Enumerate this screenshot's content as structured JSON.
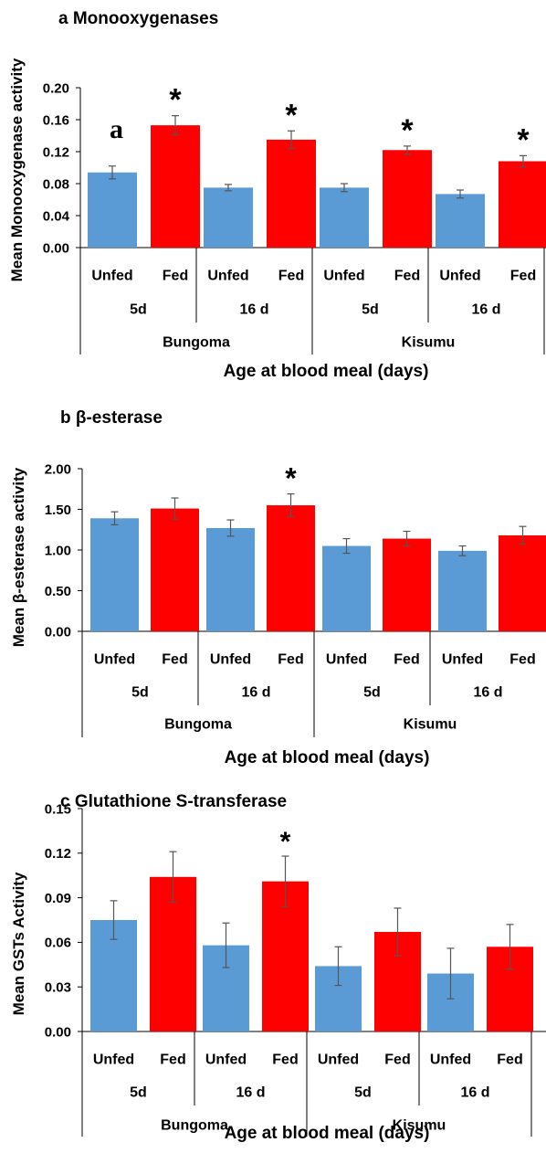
{
  "chart_data": [
    {
      "type": "bar",
      "title": "a Monooxygenases",
      "ylabel": "Mean Monooxygenase activity",
      "xlabel": "Age at blood meal (days)",
      "ylim": [
        0,
        0.2
      ],
      "yticks": [
        "0.00",
        "0.04",
        "0.08",
        "0.12",
        "0.16",
        "0.20"
      ],
      "categories": [
        "Unfed",
        "Fed",
        "Unfed",
        "Fed",
        "Unfed",
        "Fed",
        "Unfed",
        "Fed"
      ],
      "age_groups": [
        "5d",
        "16 d",
        "5d",
        "16 d"
      ],
      "sites": [
        "Bungoma",
        "Kisumu"
      ],
      "values": [
        0.094,
        0.153,
        0.075,
        0.135,
        0.075,
        0.122,
        0.067,
        0.108
      ],
      "errors": [
        0.008,
        0.012,
        0.004,
        0.011,
        0.005,
        0.005,
        0.005,
        0.007
      ],
      "significance": [
        "",
        "*",
        "",
        "*",
        "",
        "*",
        "",
        "*"
      ],
      "annotation": "a",
      "colors": {
        "Unfed": "#5b9bd5",
        "Fed": "#ff0000"
      }
    },
    {
      "type": "bar",
      "title": "b β-esterase",
      "ylabel": "Mean β-esterase activity",
      "xlabel": "Age at blood meal (days)",
      "ylim": [
        0,
        2.0
      ],
      "yticks": [
        "0.00",
        "0.50",
        "1.00",
        "1.50",
        "2.00"
      ],
      "categories": [
        "Unfed",
        "Fed",
        "Unfed",
        "Fed",
        "Unfed",
        "Fed",
        "Unfed",
        "Fed"
      ],
      "age_groups": [
        "5d",
        "16 d",
        "5d",
        "16 d"
      ],
      "sites": [
        "Bungoma",
        "Kisumu"
      ],
      "values": [
        1.39,
        1.51,
        1.27,
        1.55,
        1.05,
        1.14,
        0.99,
        1.18
      ],
      "errors": [
        0.08,
        0.13,
        0.1,
        0.14,
        0.09,
        0.09,
        0.06,
        0.11
      ],
      "significance": [
        "",
        "",
        "",
        "*",
        "",
        "",
        "",
        ""
      ],
      "colors": {
        "Unfed": "#5b9bd5",
        "Fed": "#ff0000"
      }
    },
    {
      "type": "bar",
      "title": "c Glutathione S-transferase",
      "ylabel": "Mean GSTs Activity",
      "xlabel": "Age at blood meal (days)",
      "ylim": [
        0,
        0.15
      ],
      "yticks": [
        "0.00",
        "0.03",
        "0.06",
        "0.09",
        "0.12",
        "0.15"
      ],
      "categories": [
        "Unfed",
        "Fed",
        "Unfed",
        "Fed",
        "Unfed",
        "Fed",
        "Unfed",
        "Fed"
      ],
      "age_groups": [
        "5d",
        "16 d",
        "5d",
        "16 d"
      ],
      "sites": [
        "Bungoma",
        "Kisumu"
      ],
      "values": [
        0.075,
        0.104,
        0.058,
        0.101,
        0.044,
        0.067,
        0.039,
        0.057
      ],
      "errors": [
        0.013,
        0.017,
        0.015,
        0.017,
        0.013,
        0.016,
        0.017,
        0.015
      ],
      "significance": [
        "",
        "",
        "",
        "*",
        "",
        "",
        "",
        ""
      ],
      "colors": {
        "Unfed": "#5b9bd5",
        "Fed": "#ff0000"
      }
    }
  ]
}
